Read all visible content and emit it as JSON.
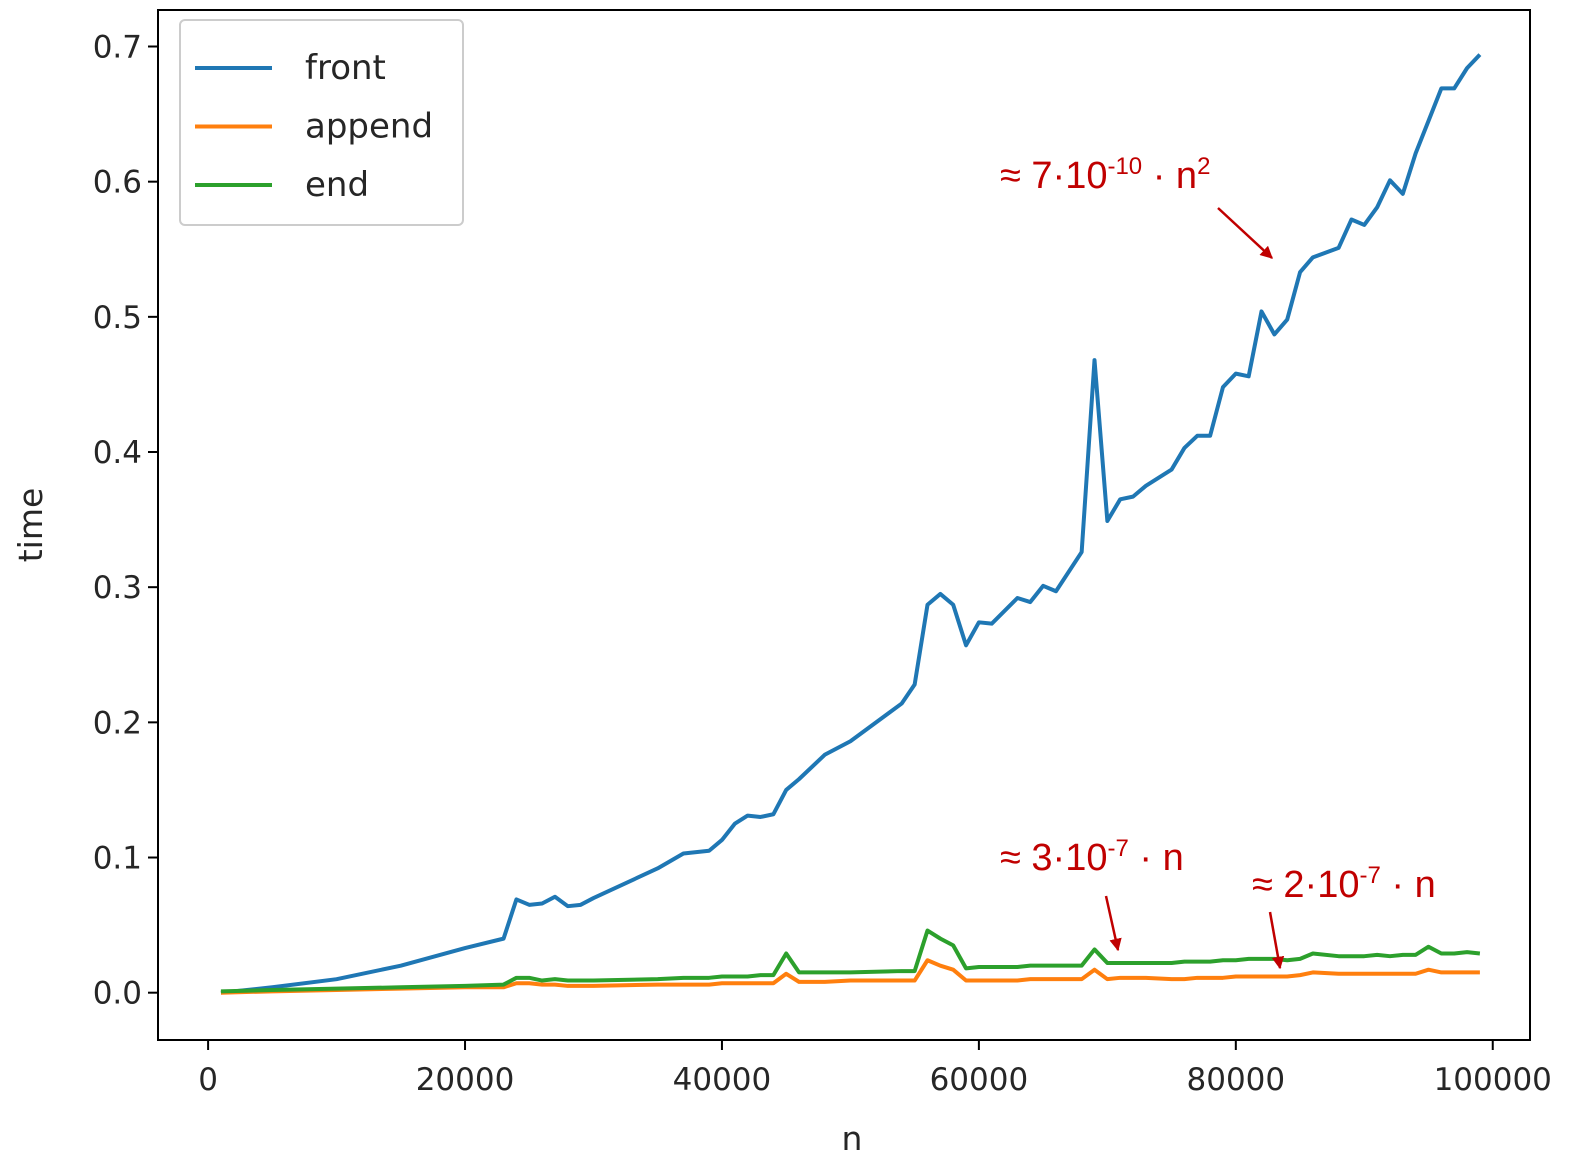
{
  "chart_data": {
    "type": "line",
    "x": [
      1000,
      5000,
      10000,
      15000,
      20000,
      23000,
      24000,
      25000,
      26000,
      27000,
      28000,
      29000,
      30000,
      35000,
      37000,
      39000,
      40000,
      41000,
      42000,
      43000,
      44000,
      45000,
      46000,
      48000,
      50000,
      54000,
      55000,
      56000,
      57000,
      58000,
      59000,
      60000,
      61000,
      63000,
      64000,
      65000,
      66000,
      68000,
      69000,
      70000,
      71000,
      72000,
      73000,
      75000,
      76000,
      77000,
      78000,
      79000,
      80000,
      81000,
      82000,
      83000,
      84000,
      85000,
      86000,
      88000,
      89000,
      90000,
      91000,
      92000,
      93000,
      94000,
      95000,
      96000,
      97000,
      98000,
      99000
    ],
    "series": [
      {
        "name": "front",
        "color": "#1f77b4",
        "values": [
          0.0,
          0.004,
          0.01,
          0.02,
          0.033,
          0.04,
          0.069,
          0.065,
          0.066,
          0.071,
          0.064,
          0.065,
          0.07,
          0.092,
          0.103,
          0.105,
          0.113,
          0.125,
          0.131,
          0.13,
          0.132,
          0.15,
          0.158,
          0.176,
          0.186,
          0.214,
          0.228,
          0.287,
          0.295,
          0.287,
          0.257,
          0.274,
          0.273,
          0.292,
          0.289,
          0.301,
          0.297,
          0.326,
          0.468,
          0.349,
          0.365,
          0.367,
          0.375,
          0.387,
          0.403,
          0.412,
          0.412,
          0.448,
          0.458,
          0.456,
          0.504,
          0.487,
          0.498,
          0.533,
          0.544,
          0.551,
          0.572,
          0.568,
          0.581,
          0.601,
          0.591,
          0.621,
          0.645,
          0.669,
          0.669,
          0.684,
          0.694
        ]
      },
      {
        "name": "append",
        "color": "#ff7f0e",
        "values": [
          0.0,
          0.001,
          0.002,
          0.003,
          0.004,
          0.004,
          0.007,
          0.007,
          0.006,
          0.006,
          0.005,
          0.005,
          0.005,
          0.006,
          0.006,
          0.006,
          0.007,
          0.007,
          0.007,
          0.007,
          0.007,
          0.014,
          0.008,
          0.008,
          0.009,
          0.009,
          0.009,
          0.024,
          0.02,
          0.017,
          0.009,
          0.009,
          0.009,
          0.009,
          0.01,
          0.01,
          0.01,
          0.01,
          0.017,
          0.01,
          0.011,
          0.011,
          0.011,
          0.01,
          0.01,
          0.011,
          0.011,
          0.011,
          0.012,
          0.012,
          0.012,
          0.012,
          0.012,
          0.013,
          0.015,
          0.014,
          0.014,
          0.014,
          0.014,
          0.014,
          0.014,
          0.014,
          0.017,
          0.015,
          0.015,
          0.015,
          0.015
        ]
      },
      {
        "name": "end",
        "color": "#2ca02c",
        "values": [
          0.001,
          0.002,
          0.003,
          0.004,
          0.005,
          0.006,
          0.011,
          0.011,
          0.009,
          0.01,
          0.009,
          0.009,
          0.009,
          0.01,
          0.011,
          0.011,
          0.012,
          0.012,
          0.012,
          0.013,
          0.013,
          0.029,
          0.015,
          0.015,
          0.015,
          0.016,
          0.016,
          0.046,
          0.04,
          0.035,
          0.018,
          0.019,
          0.019,
          0.019,
          0.02,
          0.02,
          0.02,
          0.02,
          0.032,
          0.022,
          0.022,
          0.022,
          0.022,
          0.022,
          0.023,
          0.023,
          0.023,
          0.024,
          0.024,
          0.025,
          0.025,
          0.025,
          0.024,
          0.025,
          0.029,
          0.027,
          0.027,
          0.027,
          0.028,
          0.027,
          0.028,
          0.028,
          0.034,
          0.029,
          0.029,
          0.03,
          0.029
        ]
      }
    ],
    "xlabel": "n",
    "ylabel": "time",
    "xlim": [
      -3900,
      102900
    ],
    "xticks": [
      0,
      20000,
      40000,
      60000,
      80000,
      100000
    ],
    "ylim": [
      -0.035,
      0.727
    ],
    "yticks": [
      {
        "value": 0,
        "label": "0.0"
      },
      0.1,
      0.2,
      0.3,
      0.4,
      0.5,
      0.6,
      0.7
    ],
    "legend": "upper left",
    "annotation_color": "#c00000",
    "annotations": [
      {
        "parts": [
          {
            "text": "≈ 7·10"
          },
          {
            "text": "-10",
            "superscript": true
          },
          {
            "text": " · n"
          },
          {
            "text": "2",
            "superscript": true
          }
        ]
      },
      {
        "parts": [
          {
            "text": "≈ 3·10"
          },
          {
            "text": "-7",
            "superscript": true
          },
          {
            "text": " · n"
          }
        ]
      },
      {
        "parts": [
          {
            "text": "≈ 2·10"
          },
          {
            "text": "-7",
            "superscript": true
          },
          {
            "text": " · n"
          }
        ]
      }
    ]
  }
}
